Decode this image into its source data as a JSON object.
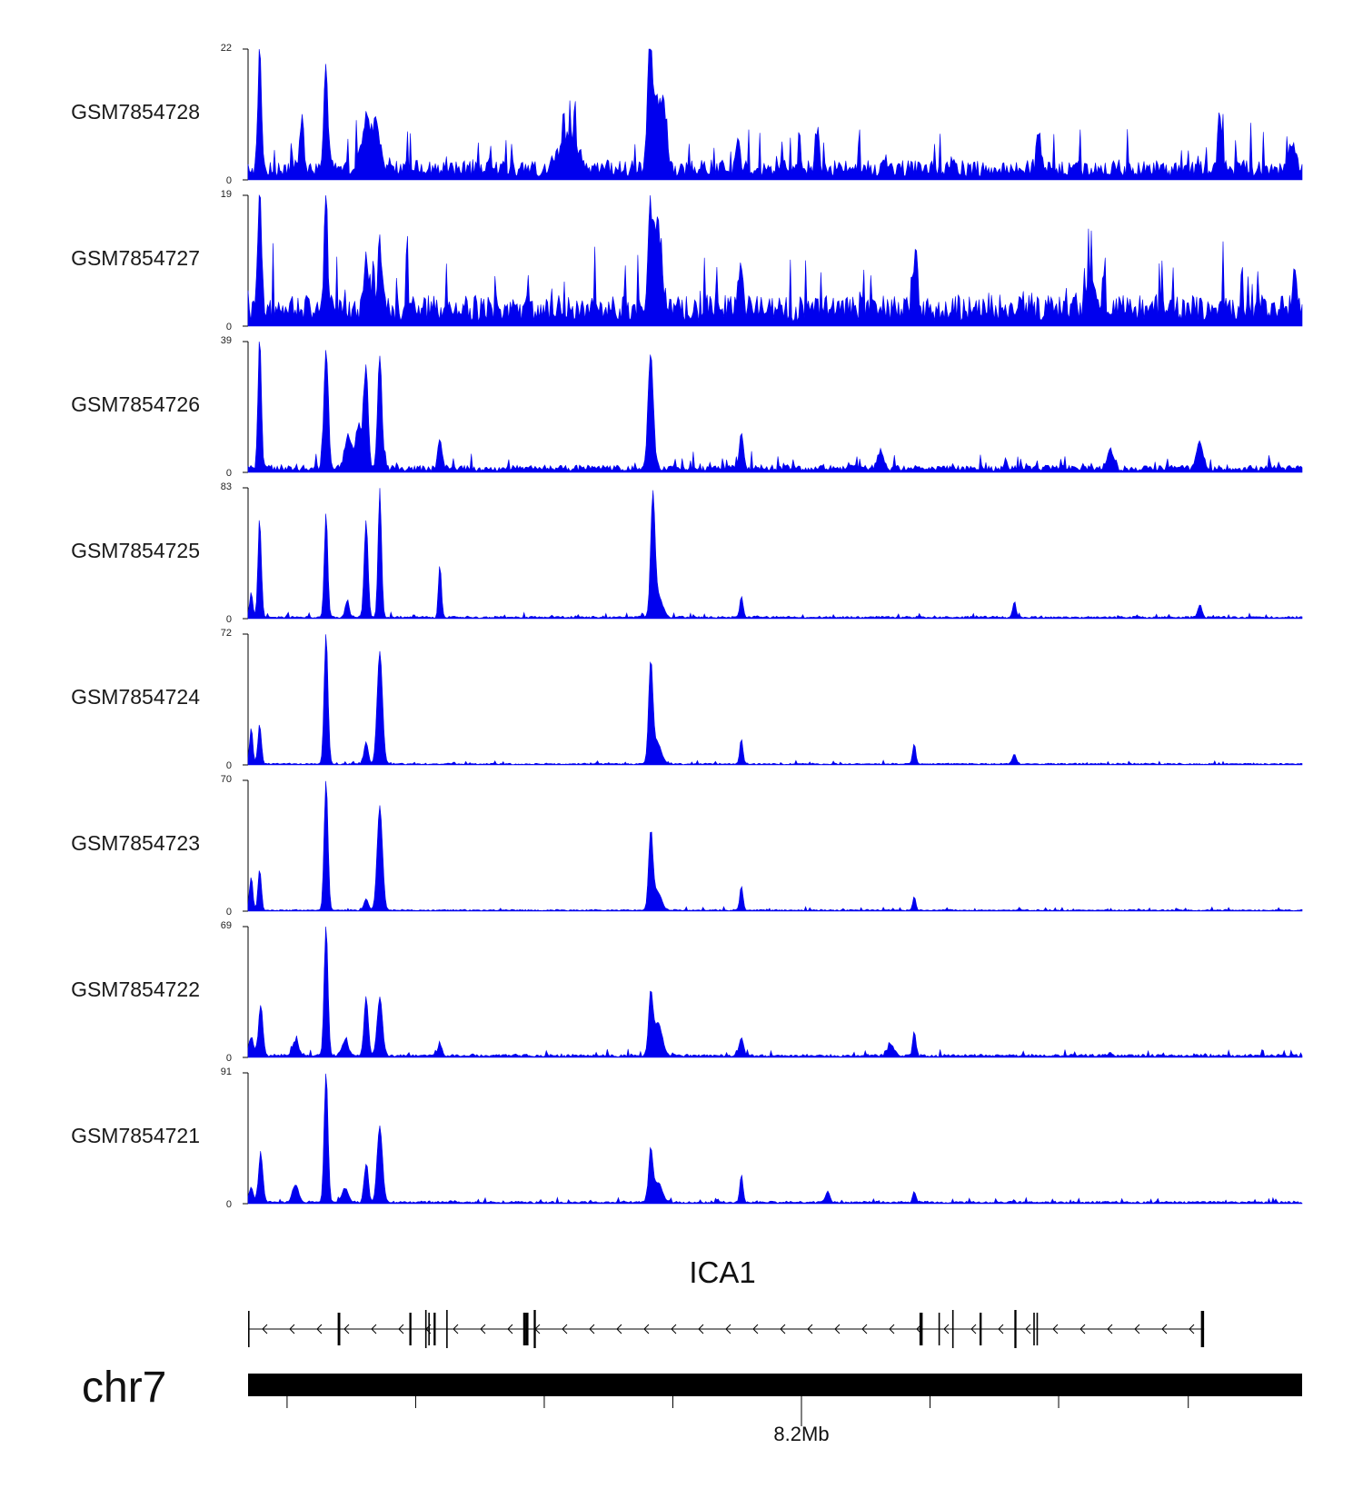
{
  "chart_data": {
    "type": "area",
    "colors": {
      "signal": "#0000ee",
      "axis": "#000000",
      "gene": "#000000"
    },
    "x_range_bins": [
      0,
      1
    ],
    "tracks": [
      {
        "name": "GSM7854728",
        "ymax": 22,
        "ymin": 0,
        "baseline": 0.14,
        "noise": 0.55,
        "peaks": [
          [
            0.011,
            22,
            0.0016
          ],
          [
            0.051,
            8,
            0.002
          ],
          [
            0.074,
            18,
            0.0018
          ],
          [
            0.112,
            8,
            0.004
          ],
          [
            0.122,
            7,
            0.004
          ],
          [
            0.305,
            6,
            0.008
          ],
          [
            0.381,
            21,
            0.002
          ],
          [
            0.387,
            12,
            0.004
          ],
          [
            0.395,
            9,
            0.003
          ],
          [
            0.465,
            6,
            0.002
          ],
          [
            0.54,
            7,
            0.002
          ],
          [
            0.75,
            7,
            0.002
          ],
          [
            0.922,
            9,
            0.002
          ],
          [
            0.99,
            5,
            0.003
          ]
        ]
      },
      {
        "name": "GSM7854727",
        "ymax": 19,
        "ymin": 0,
        "baseline": 0.22,
        "noise": 0.55,
        "peaks": [
          [
            0.011,
            19,
            0.0016
          ],
          [
            0.074,
            17,
            0.0016
          ],
          [
            0.112,
            7,
            0.002
          ],
          [
            0.125,
            10,
            0.002
          ],
          [
            0.381,
            13,
            0.002
          ],
          [
            0.388,
            12,
            0.004
          ],
          [
            0.467,
            6,
            0.002
          ],
          [
            0.633,
            8,
            0.002
          ],
          [
            0.8,
            5,
            0.003
          ],
          [
            0.993,
            6,
            0.002
          ]
        ]
      },
      {
        "name": "GSM7854726",
        "ymax": 39,
        "ymin": 0,
        "baseline": 0.05,
        "noise": 0.35,
        "peaks": [
          [
            0.011,
            39,
            0.0016
          ],
          [
            0.074,
            36,
            0.002
          ],
          [
            0.095,
            10,
            0.003
          ],
          [
            0.105,
            13,
            0.003
          ],
          [
            0.112,
            30,
            0.002
          ],
          [
            0.125,
            34,
            0.002
          ],
          [
            0.182,
            8,
            0.002
          ],
          [
            0.382,
            34,
            0.0025
          ],
          [
            0.468,
            10,
            0.002
          ],
          [
            0.6,
            5,
            0.003
          ],
          [
            0.818,
            6,
            0.003
          ],
          [
            0.903,
            8,
            0.003
          ]
        ]
      },
      {
        "name": "GSM7854725",
        "ymax": 83,
        "ymin": 0,
        "baseline": 0.015,
        "noise": 0.25,
        "peaks": [
          [
            0.003,
            16,
            0.0015
          ],
          [
            0.011,
            62,
            0.0016
          ],
          [
            0.074,
            67,
            0.0016
          ],
          [
            0.094,
            10,
            0.002
          ],
          [
            0.112,
            62,
            0.0018
          ],
          [
            0.125,
            82,
            0.0016
          ],
          [
            0.182,
            34,
            0.0014
          ],
          [
            0.384,
            74,
            0.002
          ],
          [
            0.389,
            14,
            0.004
          ],
          [
            0.468,
            14,
            0.0015
          ],
          [
            0.727,
            10,
            0.0015
          ],
          [
            0.903,
            8,
            0.002
          ]
        ]
      },
      {
        "name": "GSM7854724",
        "ymax": 72,
        "ymin": 0,
        "baseline": 0.01,
        "noise": 0.22,
        "peaks": [
          [
            0.003,
            20,
            0.0015
          ],
          [
            0.011,
            22,
            0.0016
          ],
          [
            0.074,
            72,
            0.0018
          ],
          [
            0.112,
            12,
            0.002
          ],
          [
            0.125,
            62,
            0.0025
          ],
          [
            0.382,
            54,
            0.002
          ],
          [
            0.388,
            12,
            0.004
          ],
          [
            0.468,
            14,
            0.0015
          ],
          [
            0.632,
            11,
            0.0015
          ],
          [
            0.727,
            5,
            0.002
          ]
        ]
      },
      {
        "name": "GSM7854723",
        "ymax": 70,
        "ymin": 0,
        "baseline": 0.01,
        "noise": 0.22,
        "peaks": [
          [
            0.003,
            18,
            0.0015
          ],
          [
            0.011,
            22,
            0.0016
          ],
          [
            0.074,
            70,
            0.0018
          ],
          [
            0.112,
            6,
            0.002
          ],
          [
            0.125,
            56,
            0.0025
          ],
          [
            0.382,
            40,
            0.002
          ],
          [
            0.388,
            10,
            0.004
          ],
          [
            0.468,
            13,
            0.0015
          ],
          [
            0.632,
            7,
            0.0015
          ]
        ]
      },
      {
        "name": "GSM7854722",
        "ymax": 69,
        "ymin": 0,
        "baseline": 0.02,
        "noise": 0.3,
        "peaks": [
          [
            0.003,
            10,
            0.002
          ],
          [
            0.012,
            27,
            0.002
          ],
          [
            0.045,
            8,
            0.003
          ],
          [
            0.074,
            69,
            0.0018
          ],
          [
            0.092,
            8,
            0.003
          ],
          [
            0.112,
            31,
            0.002
          ],
          [
            0.125,
            31,
            0.0025
          ],
          [
            0.182,
            6,
            0.002
          ],
          [
            0.382,
            31,
            0.002
          ],
          [
            0.389,
            17,
            0.004
          ],
          [
            0.468,
            9,
            0.002
          ],
          [
            0.632,
            13,
            0.0015
          ],
          [
            0.61,
            6,
            0.003
          ]
        ]
      },
      {
        "name": "GSM7854721",
        "ymax": 91,
        "ymin": 0,
        "baseline": 0.015,
        "noise": 0.25,
        "peaks": [
          [
            0.003,
            10,
            0.002
          ],
          [
            0.012,
            34,
            0.002
          ],
          [
            0.045,
            12,
            0.003
          ],
          [
            0.074,
            91,
            0.0018
          ],
          [
            0.092,
            10,
            0.003
          ],
          [
            0.112,
            26,
            0.002
          ],
          [
            0.125,
            53,
            0.0025
          ],
          [
            0.382,
            35,
            0.002
          ],
          [
            0.389,
            14,
            0.004
          ],
          [
            0.468,
            19,
            0.0015
          ],
          [
            0.55,
            8,
            0.002
          ],
          [
            0.632,
            8,
            0.0015
          ]
        ]
      }
    ],
    "gene": {
      "name": "ICA1",
      "strand": "-",
      "start": 0.0,
      "end": 0.907,
      "exons": [
        [
          0.0,
          0.0012
        ],
        [
          0.085,
          0.0875
        ],
        [
          0.153,
          0.155
        ],
        [
          0.168,
          0.169
        ],
        [
          0.171,
          0.172
        ],
        [
          0.176,
          0.178
        ],
        [
          0.188,
          0.189
        ],
        [
          0.261,
          0.263
        ],
        [
          0.263,
          0.266
        ],
        [
          0.271,
          0.273
        ],
        [
          0.637,
          0.64
        ],
        [
          0.655,
          0.656
        ],
        [
          0.668,
          0.669
        ],
        [
          0.694,
          0.695
        ],
        [
          0.694,
          0.696
        ],
        [
          0.727,
          0.729
        ],
        [
          0.745,
          0.746
        ],
        [
          0.748,
          0.749
        ],
        [
          0.904,
          0.907
        ]
      ]
    },
    "chromosome": {
      "name": "chr7",
      "ticks": [
        0.037,
        0.159,
        0.281,
        0.403,
        0.525,
        0.647,
        0.769,
        0.892
      ],
      "tick_label": "8.2Mb",
      "labeled_tick_index": 4
    }
  }
}
